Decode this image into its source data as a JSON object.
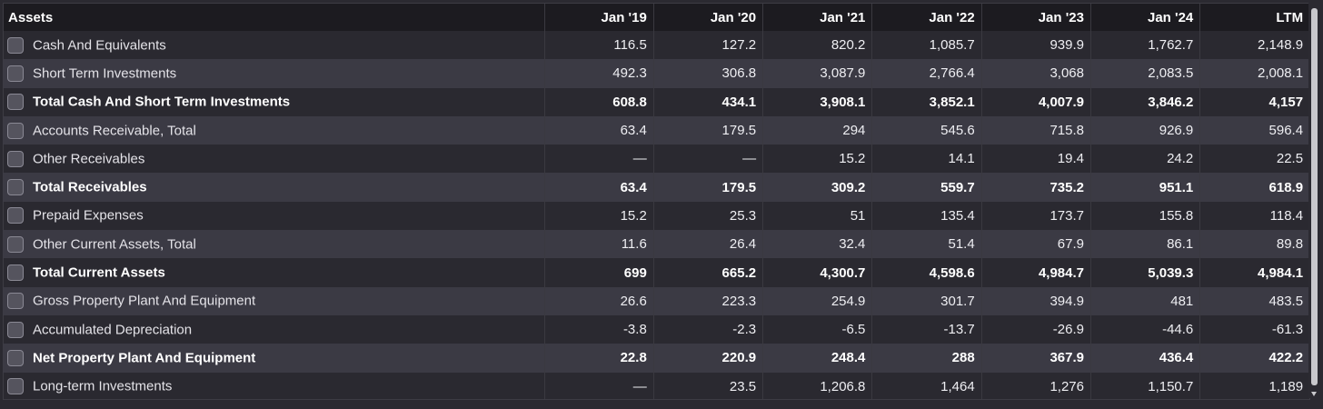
{
  "table": {
    "header": {
      "label": "Assets",
      "columns": [
        "Jan '19",
        "Jan '20",
        "Jan '21",
        "Jan '22",
        "Jan '23",
        "Jan '24",
        "LTM"
      ]
    },
    "rows": [
      {
        "label": "Cash And Equivalents",
        "bold": false,
        "values": [
          "116.5",
          "127.2",
          "820.2",
          "1,085.7",
          "939.9",
          "1,762.7",
          "2,148.9"
        ]
      },
      {
        "label": "Short Term Investments",
        "bold": false,
        "values": [
          "492.3",
          "306.8",
          "3,087.9",
          "2,766.4",
          "3,068",
          "2,083.5",
          "2,008.1"
        ]
      },
      {
        "label": "Total Cash And Short Term Investments",
        "bold": true,
        "values": [
          "608.8",
          "434.1",
          "3,908.1",
          "3,852.1",
          "4,007.9",
          "3,846.2",
          "4,157"
        ]
      },
      {
        "label": "Accounts Receivable, Total",
        "bold": false,
        "values": [
          "63.4",
          "179.5",
          "294",
          "545.6",
          "715.8",
          "926.9",
          "596.4"
        ]
      },
      {
        "label": "Other Receivables",
        "bold": false,
        "values": [
          "—",
          "—",
          "15.2",
          "14.1",
          "19.4",
          "24.2",
          "22.5"
        ]
      },
      {
        "label": "Total Receivables",
        "bold": true,
        "values": [
          "63.4",
          "179.5",
          "309.2",
          "559.7",
          "735.2",
          "951.1",
          "618.9"
        ]
      },
      {
        "label": "Prepaid Expenses",
        "bold": false,
        "values": [
          "15.2",
          "25.3",
          "51",
          "135.4",
          "173.7",
          "155.8",
          "118.4"
        ]
      },
      {
        "label": "Other Current Assets, Total",
        "bold": false,
        "values": [
          "11.6",
          "26.4",
          "32.4",
          "51.4",
          "67.9",
          "86.1",
          "89.8"
        ]
      },
      {
        "label": "Total Current Assets",
        "bold": true,
        "values": [
          "699",
          "665.2",
          "4,300.7",
          "4,598.6",
          "4,984.7",
          "5,039.3",
          "4,984.1"
        ]
      },
      {
        "label": "Gross Property Plant And Equipment",
        "bold": false,
        "values": [
          "26.6",
          "223.3",
          "254.9",
          "301.7",
          "394.9",
          "481",
          "483.5"
        ]
      },
      {
        "label": "Accumulated Depreciation",
        "bold": false,
        "values": [
          "-3.8",
          "-2.3",
          "-6.5",
          "-13.7",
          "-26.9",
          "-44.6",
          "-61.3"
        ]
      },
      {
        "label": "Net Property Plant And Equipment",
        "bold": true,
        "values": [
          "22.8",
          "220.9",
          "248.4",
          "288",
          "367.9",
          "436.4",
          "422.2"
        ]
      },
      {
        "label": "Long-term Investments",
        "bold": false,
        "values": [
          "—",
          "23.5",
          "1,206.8",
          "1,464",
          "1,276",
          "1,150.7",
          "1,189"
        ]
      }
    ]
  },
  "colors": {
    "header_bg": "#1c1b20",
    "row_dark": "#2a2930",
    "row_light": "#3b3a44",
    "checkbox": "#55545e"
  }
}
